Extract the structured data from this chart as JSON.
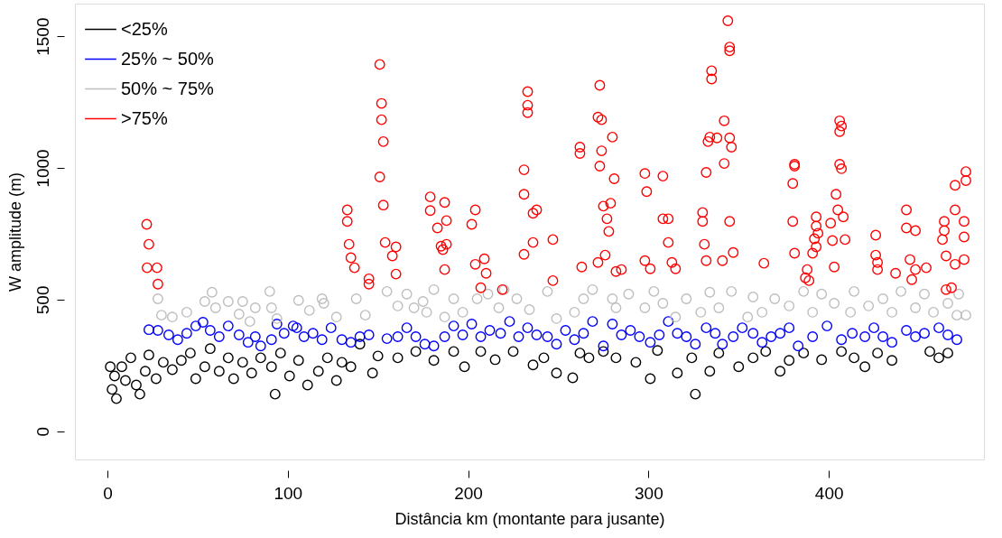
{
  "chart_data": {
    "type": "scatter",
    "xlabel": "Distância km (montante para jusante)",
    "ylabel": "W  amplitude (m)",
    "xlim": [
      -18,
      486
    ],
    "ylim": [
      -107,
      1624
    ],
    "xticks": [
      0,
      100,
      200,
      300,
      400
    ],
    "yticks": [
      0,
      500,
      1000,
      1500
    ],
    "grid": false,
    "legend": "top left",
    "marker": "circle",
    "series": [
      {
        "name": "<25%",
        "color": "#000000",
        "x": [
          1.6,
          2.6,
          5,
          4,
          8,
          10,
          13,
          16,
          18,
          21,
          23,
          27,
          31,
          36,
          41,
          46,
          49,
          54,
          57,
          62,
          67,
          70,
          75,
          80,
          85,
          91,
          93,
          96,
          101,
          106,
          111,
          117,
          122,
          127,
          130,
          135,
          140,
          147,
          150,
          161,
          171,
          181,
          192,
          198,
          207,
          215,
          225,
          236,
          242,
          249,
          258,
          262,
          267,
          275,
          282,
          293,
          301,
          305,
          316,
          324,
          326,
          334,
          339,
          350,
          358,
          365,
          373,
          378,
          386,
          396,
          407,
          414,
          420,
          427,
          435,
          456,
          461,
          466
        ],
        "values": [
          245,
          159,
          124,
          210,
          245,
          193,
          279,
          176,
          141,
          228,
          290,
          200,
          262,
          234,
          269,
          297,
          200,
          245,
          314,
          228,
          279,
          200,
          262,
          221,
          279,
          245,
          141,
          297,
          210,
          269,
          176,
          228,
          279,
          193,
          262,
          245,
          331,
          221,
          286,
          279,
          303,
          269,
          303,
          245,
          303,
          272,
          303,
          252,
          279,
          221,
          203,
          297,
          279,
          303,
          279,
          262,
          200,
          307,
          221,
          279,
          141,
          228,
          297,
          245,
          279,
          303,
          228,
          269,
          297,
          272,
          303,
          279,
          245,
          297,
          269,
          303,
          279,
          297
        ]
      },
      {
        "name": "25% ~ 50%",
        "color": "#0000ff",
        "x": [
          23,
          28,
          34,
          39,
          44,
          49,
          53,
          57,
          62,
          67,
          73,
          78,
          82,
          85,
          91,
          94,
          98,
          103,
          105,
          109,
          114,
          119,
          124,
          130,
          135,
          140,
          145,
          155,
          161,
          166,
          171,
          176,
          181,
          187,
          192,
          197,
          202,
          207,
          212,
          218,
          223,
          228,
          233,
          238,
          244,
          249,
          254,
          259,
          264,
          269,
          275,
          280,
          285,
          290,
          295,
          301,
          306,
          311,
          316,
          321,
          326,
          332,
          337,
          341,
          347,
          352,
          358,
          363,
          368,
          373,
          378,
          383,
          391,
          399,
          407,
          413,
          420,
          425,
          430,
          435,
          443,
          448,
          453,
          461,
          466,
          471
        ],
        "values": [
          386,
          383,
          366,
          348,
          372,
          400,
          414,
          383,
          359,
          400,
          366,
          338,
          359,
          324,
          348,
          407,
          372,
          400,
          393,
          359,
          372,
          348,
          393,
          348,
          338,
          359,
          366,
          352,
          359,
          393,
          359,
          331,
          324,
          359,
          400,
          366,
          407,
          359,
          383,
          372,
          417,
          359,
          393,
          366,
          359,
          331,
          383,
          348,
          372,
          417,
          324,
          407,
          366,
          383,
          359,
          338,
          366,
          417,
          372,
          359,
          331,
          393,
          372,
          331,
          359,
          393,
          372,
          338,
          359,
          372,
          393,
          324,
          359,
          400,
          348,
          372,
          359,
          393,
          359,
          338,
          383,
          359,
          372,
          393,
          366,
          348
        ]
      },
      {
        "name": "50% ~ 75%",
        "color": "#bebebe",
        "x": [
          28,
          30,
          36,
          44,
          54,
          58,
          60,
          67,
          73,
          75,
          79,
          82,
          90,
          91,
          94,
          106,
          112,
          119,
          120,
          127,
          138,
          143,
          155,
          161,
          166,
          170,
          175,
          177,
          181,
          187,
          192,
          197,
          205,
          211,
          217,
          220,
          227,
          234,
          244,
          249,
          259,
          264,
          269,
          280,
          282,
          289,
          298,
          303,
          308,
          315,
          321,
          329,
          334,
          339,
          346,
          355,
          358,
          363,
          370,
          378,
          386,
          391,
          396,
          403,
          412,
          414,
          422,
          430,
          435,
          440,
          448,
          453,
          458,
          466,
          471,
          472,
          476
        ],
        "values": [
          503,
          441,
          434,
          452,
          493,
          528,
          469,
          493,
          445,
          493,
          417,
          469,
          531,
          469,
          428,
          497,
          459,
          503,
          486,
          434,
          503,
          441,
          531,
          476,
          521,
          469,
          493,
          452,
          538,
          434,
          503,
          452,
          503,
          521,
          469,
          538,
          503,
          462,
          531,
          428,
          452,
          503,
          538,
          503,
          469,
          521,
          469,
          531,
          486,
          434,
          503,
          452,
          528,
          469,
          531,
          434,
          510,
          452,
          503,
          476,
          531,
          452,
          521,
          486,
          452,
          531,
          476,
          503,
          452,
          531,
          469,
          521,
          452,
          486,
          441,
          521,
          441
        ]
      },
      {
        "name": ">75%",
        "color": "#ff0000",
        "x": [
          21.8,
          23,
          22,
          27.5,
          28,
          133,
          133,
          134,
          135,
          137,
          145,
          145,
          151,
          152,
          152,
          153,
          151,
          153,
          154,
          158,
          160,
          160,
          179,
          179,
          183,
          185,
          186,
          187,
          188,
          187,
          188,
          202,
          204,
          204,
          209,
          210,
          207,
          219,
          231,
          231,
          233,
          233,
          233,
          236,
          231,
          236,
          238,
          247,
          247,
          262,
          262,
          263,
          272,
          273,
          272,
          274,
          274,
          273,
          277,
          275,
          276,
          279,
          278,
          280,
          281,
          285,
          282,
          298,
          299,
          298,
          301,
          308,
          308,
          311,
          311,
          313,
          315,
          330,
          330,
          331,
          332,
          332,
          333,
          334,
          335,
          335,
          338,
          342,
          342,
          344,
          345,
          345,
          347,
          345,
          346,
          345,
          341,
          364,
          381,
          381,
          380,
          380,
          381,
          387,
          388,
          389,
          393,
          393,
          394,
          391,
          393,
          392,
          401,
          402,
          403,
          404,
          406,
          407,
          406,
          406,
          407,
          408,
          405,
          409,
          426,
          426,
          427,
          427,
          437,
          443,
          443,
          445,
          446,
          448,
          448,
          454,
          463,
          464,
          464,
          465,
          468,
          470,
          470,
          475,
          475,
          476,
          476,
          470,
          475,
          465
        ],
        "values": [
          786,
          710,
          621,
          621,
          559,
          841,
          797,
          710,
          659,
          621,
          559,
          579,
          1393,
          1245,
          1183,
          1100,
          966,
          859,
          717,
          666,
          700,
          597,
          890,
          838,
          772,
          703,
          690,
          869,
          800,
          614,
          710,
          786,
          841,
          634,
          655,
          600,
          545,
          538,
          672,
          993,
          1290,
          1238,
          1210,
          828,
          900,
          717,
          841,
          728,
          572,
          1055,
          1079,
          624,
          641,
          1314,
          1193,
          1183,
          1065,
          1007,
          807,
          855,
          669,
          866,
          759,
          1117,
          959,
          614,
          607,
          979,
          910,
          648,
          617,
          969,
          807,
          807,
          717,
          641,
          617,
          831,
          797,
          710,
          648,
          983,
          1100,
          1117,
          1338,
          1369,
          1114,
          1179,
          1017,
          1559,
          1459,
          1445,
          679,
          1114,
          1079,
          797,
          648,
          638,
          1014,
          1007,
          941,
          797,
          676,
          583,
          614,
          572,
          700,
          779,
          752,
          676,
          814,
          731,
          790,
          724,
          624,
          900,
          1179,
          1159,
          1138,
          1014,
          997,
          814,
          841,
          728,
          745,
          669,
          641,
          614,
          600,
          841,
          772,
          652,
          576,
          614,
          762,
          621,
          728,
          762,
          797,
          666,
          545,
          841,
          934,
          797,
          738,
          986,
          952,
          634,
          652,
          538
        ]
      }
    ]
  }
}
